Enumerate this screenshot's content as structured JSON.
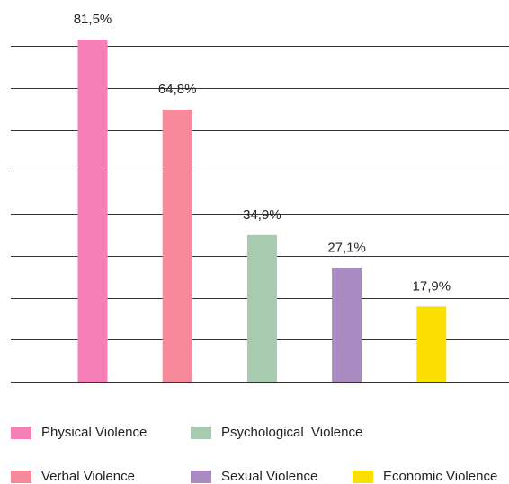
{
  "chart_data": {
    "type": "bar",
    "categories": [
      "Physical Violence",
      "Verbal Violence",
      "Psychological  Violence",
      "Sexual Violence",
      "Economic Violence"
    ],
    "values": [
      81.5,
      64.8,
      34.9,
      27.1,
      17.9
    ],
    "value_labels": [
      "81,5%",
      "64,8%",
      "34,9%",
      "27,1%",
      "17,9%"
    ],
    "colors": [
      "#f77fb8",
      "#f78a9a",
      "#a8cbb0",
      "#a98bc1",
      "#fadf00"
    ],
    "ylim": [
      0,
      80
    ],
    "yticks": [
      0,
      10,
      20,
      30,
      40,
      50,
      60,
      70,
      80
    ],
    "grid": true
  }
}
